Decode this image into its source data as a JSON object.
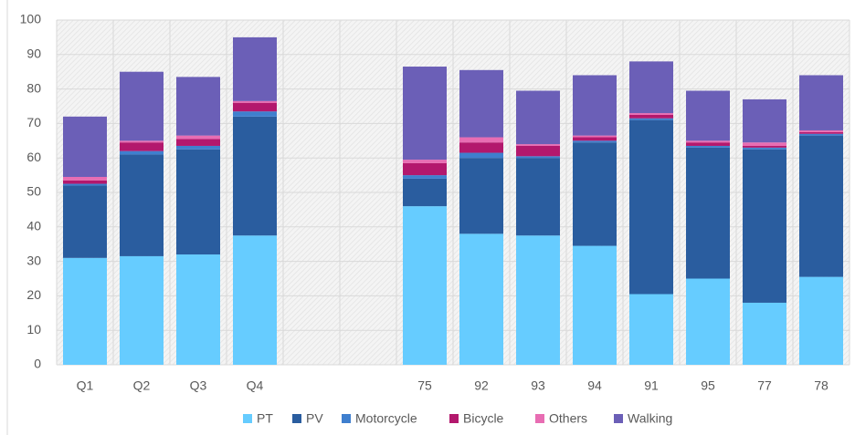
{
  "chart_data": {
    "type": "stacked_bar",
    "categories": [
      "Q1",
      "Q2",
      "Q3",
      "Q4",
      null,
      null,
      "75",
      "92",
      "93",
      "94",
      "91",
      "95",
      "77",
      "78"
    ],
    "series": [
      {
        "name": "PT",
        "color": "#66ccff",
        "values": [
          31,
          31.5,
          32,
          37.5,
          null,
          null,
          46,
          38,
          37.5,
          34.5,
          20.5,
          25,
          18,
          25.5
        ]
      },
      {
        "name": "PV",
        "color": "#2a5d9f",
        "values": [
          21,
          29.5,
          30.5,
          34.5,
          null,
          null,
          8,
          22,
          22.5,
          30,
          50.5,
          38,
          44.5,
          41
        ]
      },
      {
        "name": "Motorcycle",
        "color": "#3f7fce",
        "values": [
          0.5,
          1,
          1,
          1.5,
          null,
          null,
          1,
          1.5,
          0.5,
          0.5,
          0.5,
          0.5,
          0.5,
          0.5
        ]
      },
      {
        "name": "Bicycle",
        "color": "#b3186d",
        "values": [
          1,
          2.5,
          2,
          2.5,
          null,
          null,
          3.5,
          3,
          3,
          1,
          1,
          1,
          0.5,
          0.5
        ]
      },
      {
        "name": "Others",
        "color": "#e86db3",
        "values": [
          1,
          0.5,
          1,
          0.5,
          null,
          null,
          1,
          1.5,
          0.5,
          0.5,
          0.5,
          0.5,
          1,
          0.5
        ]
      },
      {
        "name": "Walking",
        "color": "#6b5fb7",
        "values": [
          17.5,
          20,
          17,
          18.5,
          null,
          null,
          27,
          19.5,
          15.5,
          17.5,
          15,
          14.5,
          12.5,
          16
        ]
      }
    ],
    "ylim": [
      0,
      100
    ],
    "yticks": [
      0,
      10,
      20,
      30,
      40,
      50,
      60,
      70,
      80,
      90,
      100
    ],
    "grid": true,
    "legend": "bottom"
  }
}
